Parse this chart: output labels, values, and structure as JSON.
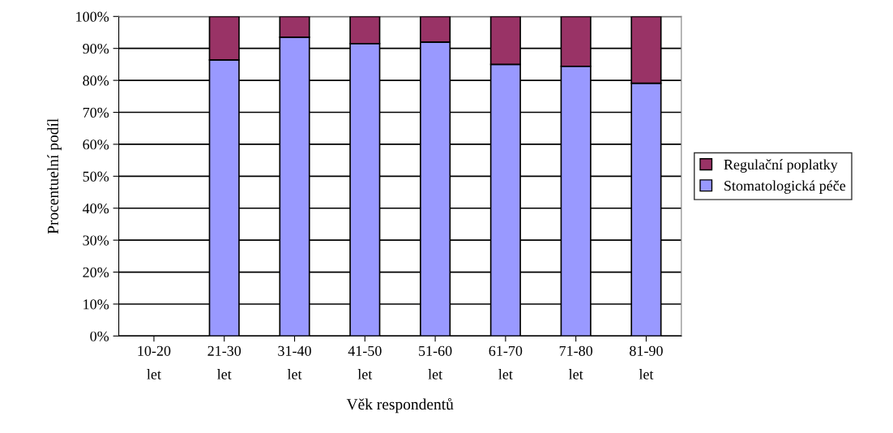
{
  "chart_data": {
    "type": "bar",
    "stacked": true,
    "xlabel": "Věk respondentů",
    "ylabel": "Procentuelní podíl",
    "categories": [
      "10-20\nlet",
      "21-30\nlet",
      "31-40\nlet",
      "41-50\nlet",
      "51-60\nlet",
      "61-70\nlet",
      "71-80\nlet",
      "81-90\nlet"
    ],
    "series": [
      {
        "name": "Stomatologická péče",
        "color": "#9999ff",
        "values": [
          null,
          86.4,
          93.5,
          91.5,
          92.0,
          85.0,
          84.4,
          79.1
        ]
      },
      {
        "name": "Regulační poplatky",
        "color": "#993366",
        "values": [
          null,
          13.6,
          6.5,
          8.5,
          8.0,
          15.0,
          15.6,
          20.9
        ]
      }
    ],
    "ylim": [
      0,
      100
    ],
    "yticks": [
      {
        "value": 0,
        "label": "0%"
      },
      {
        "value": 10,
        "label": "10%"
      },
      {
        "value": 20,
        "label": "20%"
      },
      {
        "value": 30,
        "label": "30%"
      },
      {
        "value": 40,
        "label": "40%"
      },
      {
        "value": 50,
        "label": "50%"
      },
      {
        "value": 60,
        "label": "60%"
      },
      {
        "value": 70,
        "label": "70%"
      },
      {
        "value": 80,
        "label": "80%"
      },
      {
        "value": 90,
        "label": "90%"
      },
      {
        "value": 100,
        "label": "100%"
      }
    ],
    "grid": "y",
    "legend": "right"
  }
}
